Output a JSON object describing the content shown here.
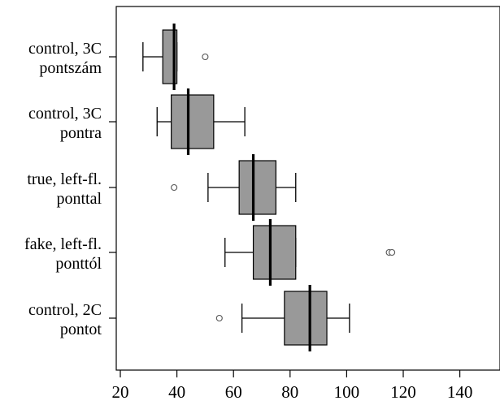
{
  "chart_data": {
    "type": "boxplot",
    "orientation": "horizontal",
    "xlim": [
      18,
      152
    ],
    "xticks": [
      20,
      40,
      60,
      80,
      100,
      120,
      140
    ],
    "xlabel": "",
    "ylabel": "",
    "title": "",
    "grid": false,
    "colors": {
      "box_fill": "#999999",
      "stroke": "#000000"
    },
    "categories": [
      {
        "label_line1": "control,  3C",
        "label_line2": "pontszám",
        "whisker_low": 28,
        "q1": 35,
        "median": 39,
        "q3": 40,
        "whisker_high": 40,
        "outliers": [
          50
        ]
      },
      {
        "label_line1": "control,  3C",
        "label_line2": "pontra",
        "whisker_low": 33,
        "q1": 38,
        "median": 44,
        "q3": 53,
        "whisker_high": 64,
        "outliers": []
      },
      {
        "label_line1": "true, left-fl.",
        "label_line2": "ponttal",
        "whisker_low": 51,
        "q1": 62,
        "median": 67,
        "q3": 75,
        "whisker_high": 82,
        "outliers": [
          39
        ]
      },
      {
        "label_line1": "fake, left-fl.",
        "label_line2": "ponttól",
        "whisker_low": 57,
        "q1": 67,
        "median": 73,
        "q3": 82,
        "whisker_high": 82,
        "outliers": [
          115,
          116
        ]
      },
      {
        "label_line1": "control, 2C",
        "label_line2": "pontot",
        "whisker_low": 63,
        "q1": 78,
        "median": 87,
        "q3": 93,
        "whisker_high": 101,
        "outliers": [
          55
        ]
      }
    ]
  }
}
